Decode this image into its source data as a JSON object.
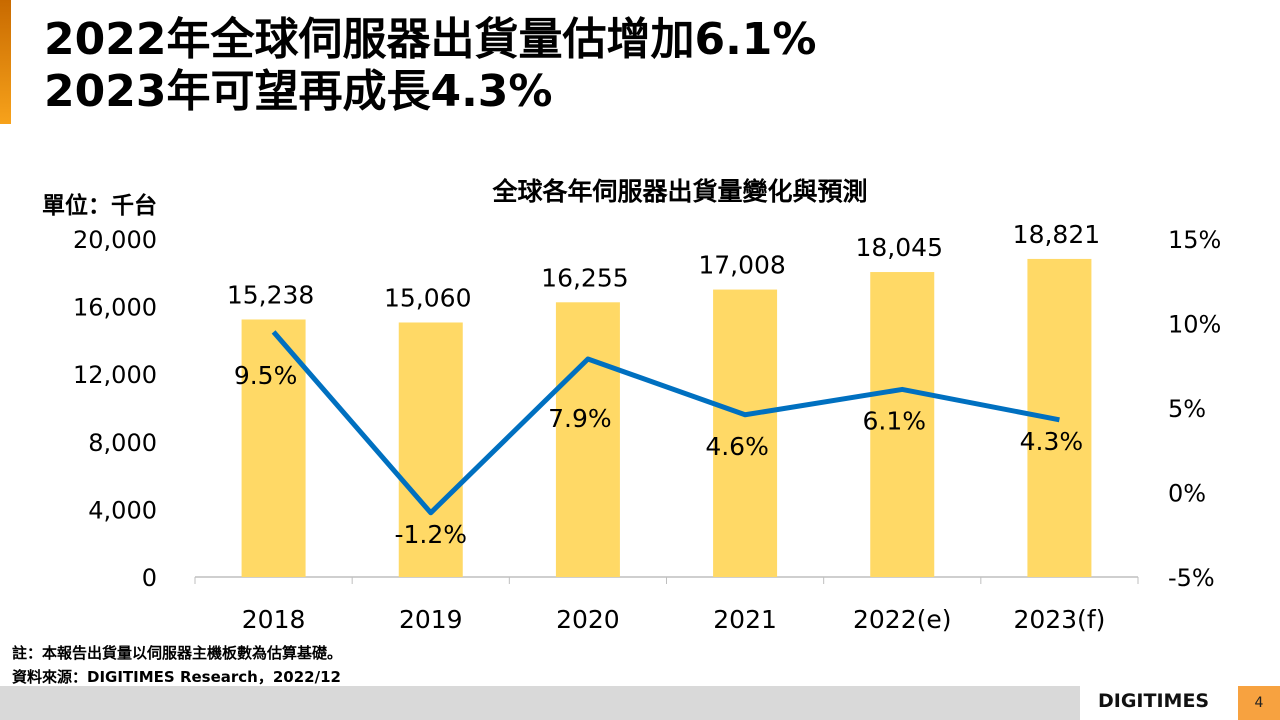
{
  "title": {
    "line1": "2022年全球伺服器出貨量估增加6.1%",
    "line2": "2023年可望再成長4.3%"
  },
  "chart_data": {
    "type": "bar+line",
    "title": "全球各年伺服器出貨量變化與預測",
    "unit_label": "單位：千台",
    "categories": [
      "2018",
      "2019",
      "2020",
      "2021",
      "2022(e)",
      "2023(f)"
    ],
    "series": [
      {
        "type": "bar",
        "axis": "left",
        "values": [
          15238,
          15060,
          16255,
          17008,
          18045,
          18821
        ],
        "labels": [
          "15,238",
          "15,060",
          "16,255",
          "17,008",
          "18,045",
          "18,821"
        ],
        "color": "#FFD966"
      },
      {
        "type": "line",
        "axis": "right",
        "values": [
          9.5,
          -1.2,
          7.9,
          4.6,
          6.1,
          4.3
        ],
        "labels": [
          "9.5%",
          "-1.2%",
          "7.9%",
          "4.6%",
          "6.1%",
          "4.3%"
        ],
        "color": "#0070C0"
      }
    ],
    "left_axis": {
      "range": [
        0,
        20000
      ],
      "ticks": [
        "0",
        "4,000",
        "8,000",
        "12,000",
        "16,000",
        "20,000"
      ]
    },
    "right_axis": {
      "range": [
        -5,
        15
      ],
      "ticks": [
        "-5%",
        "0%",
        "5%",
        "10%",
        "15%"
      ]
    },
    "grid": false
  },
  "notes": {
    "note": "註：本報告出貨量以伺服器主機板數為估算基礎。",
    "source": "資料來源：DIGITIMES Research，2022/12"
  },
  "footer": {
    "logo": "DIGITIMES",
    "page": "4"
  }
}
